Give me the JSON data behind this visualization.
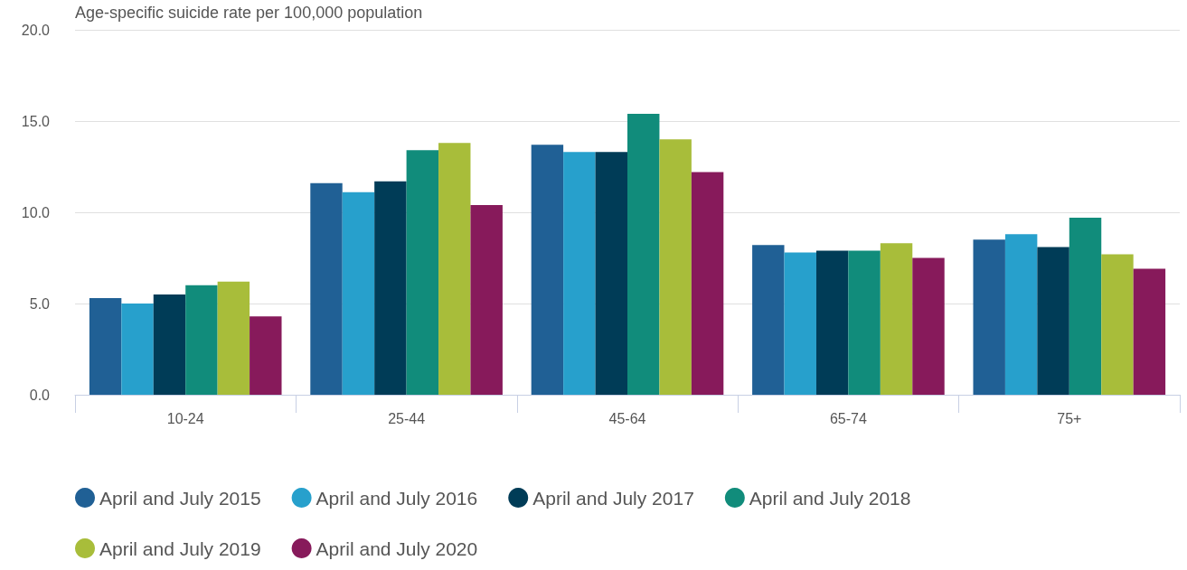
{
  "chart_data": {
    "type": "bar",
    "ylabel": "Age-specific suicide rate per 100,000 population",
    "categories": [
      "10-24",
      "25-44",
      "45-64",
      "65-74",
      "75+"
    ],
    "series": [
      {
        "name": "April and July 2015",
        "color": "#206095",
        "values": [
          5.3,
          11.6,
          13.7,
          8.2,
          8.5
        ]
      },
      {
        "name": "April and July 2016",
        "color": "#27a0cc",
        "values": [
          5.0,
          11.1,
          13.3,
          7.8,
          8.8
        ]
      },
      {
        "name": "April and July 2017",
        "color": "#003c57",
        "values": [
          5.5,
          11.7,
          13.3,
          7.9,
          8.1
        ]
      },
      {
        "name": "April and July 2018",
        "color": "#118c7b",
        "values": [
          6.0,
          13.4,
          15.4,
          7.9,
          9.7
        ]
      },
      {
        "name": "April and July 2019",
        "color": "#a8bd3a",
        "values": [
          6.2,
          13.8,
          14.0,
          8.3,
          7.7
        ]
      },
      {
        "name": "April and July 2020",
        "color": "#871a5b",
        "values": [
          4.3,
          10.4,
          12.2,
          7.5,
          6.9
        ]
      }
    ],
    "ylim": [
      0,
      20
    ],
    "yticks": [
      {
        "value": 0,
        "label": "0.0"
      },
      {
        "value": 5,
        "label": "5.0"
      },
      {
        "value": 10,
        "label": "10.0"
      },
      {
        "value": 15,
        "label": "15.0"
      },
      {
        "value": 20,
        "label": "20.0"
      }
    ],
    "grid": "y",
    "legend": "bottom"
  }
}
